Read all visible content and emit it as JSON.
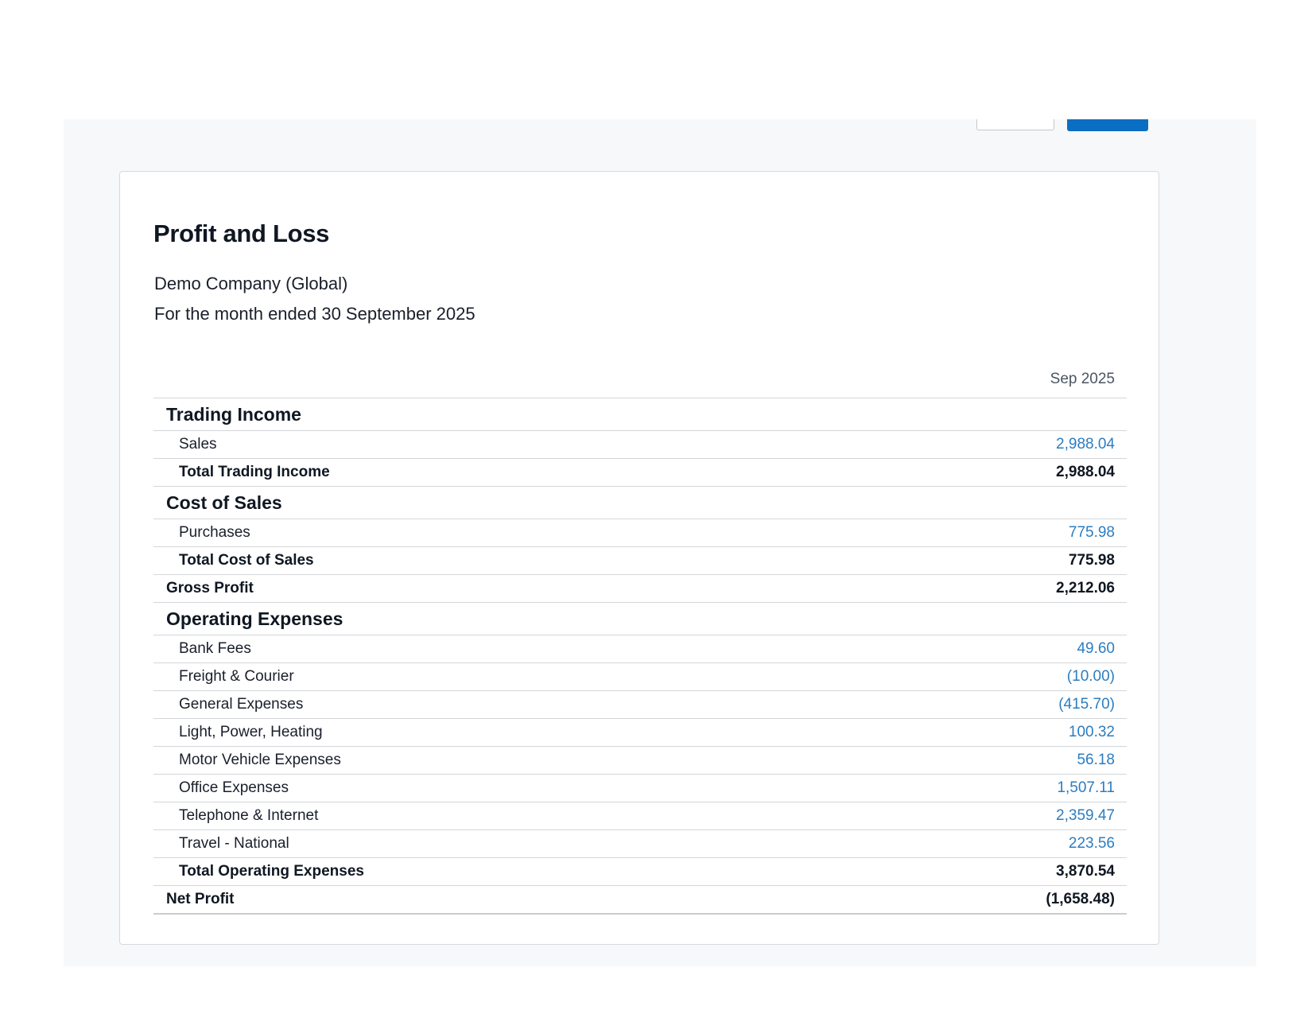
{
  "report": {
    "title": "Profit and Loss",
    "organisation": "Demo Company (Global)",
    "period": "For the month ended 30 September 2025",
    "column_header": "Sep 2025"
  },
  "sections": {
    "trading_income": {
      "heading": "Trading Income",
      "items": [
        {
          "label": "Sales",
          "amount": "2,988.04"
        }
      ],
      "total_label": "Total Trading Income",
      "total_amount": "2,988.04"
    },
    "cost_of_sales": {
      "heading": "Cost of Sales",
      "items": [
        {
          "label": "Purchases",
          "amount": "775.98"
        }
      ],
      "total_label": "Total Cost of Sales",
      "total_amount": "775.98"
    },
    "gross_profit": {
      "label": "Gross Profit",
      "amount": "2,212.06"
    },
    "operating_expenses": {
      "heading": "Operating Expenses",
      "items": [
        {
          "label": "Bank Fees",
          "amount": "49.60"
        },
        {
          "label": "Freight & Courier",
          "amount": "(10.00)"
        },
        {
          "label": "General Expenses",
          "amount": "(415.70)"
        },
        {
          "label": "Light, Power, Heating",
          "amount": "100.32"
        },
        {
          "label": "Motor Vehicle Expenses",
          "amount": "56.18"
        },
        {
          "label": "Office Expenses",
          "amount": "1,507.11"
        },
        {
          "label": "Telephone & Internet",
          "amount": "2,359.47"
        },
        {
          "label": "Travel - National",
          "amount": "223.56"
        }
      ],
      "total_label": "Total Operating Expenses",
      "total_amount": "3,870.54"
    },
    "net_profit": {
      "label": "Net Profit",
      "amount": "(1,658.48)"
    }
  },
  "colors": {
    "primary_button": "#0a6fc2",
    "link_amount": "#2b7dc0",
    "app_background": "#f7f8f9"
  }
}
